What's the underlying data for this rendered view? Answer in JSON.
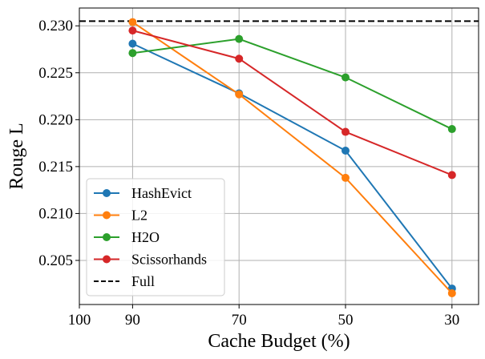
{
  "chart_data": {
    "type": "line",
    "title": "",
    "xlabel": "Cache Budget (%)",
    "ylabel": "Rouge L",
    "x": [
      90,
      70,
      50,
      30
    ],
    "xlim": [
      100,
      25
    ],
    "xticks": [
      100,
      90,
      70,
      50,
      30
    ],
    "ylim": [
      0.2003,
      0.2319
    ],
    "yticks": [
      0.205,
      0.21,
      0.215,
      0.22,
      0.225,
      0.23
    ],
    "ytick_labels": [
      "0.205",
      "0.210",
      "0.215",
      "0.220",
      "0.225",
      "0.230"
    ],
    "grid": true,
    "legend_position": "lower-left",
    "series": [
      {
        "name": "HashEvict",
        "color": "#1f77b4",
        "marker": "circle",
        "values": [
          0.2281,
          0.2228,
          0.2167,
          0.202
        ]
      },
      {
        "name": "L2",
        "color": "#ff7f0e",
        "marker": "circle",
        "values": [
          0.2304,
          0.2227,
          0.2138,
          0.2015
        ]
      },
      {
        "name": "H2O",
        "color": "#2ca02c",
        "marker": "circle",
        "values": [
          0.2271,
          0.2286,
          0.2245,
          0.219
        ]
      },
      {
        "name": "Scissorhands",
        "color": "#d62728",
        "marker": "circle",
        "values": [
          0.2295,
          0.2265,
          0.2187,
          0.2141
        ]
      }
    ],
    "reference_lines": [
      {
        "name": "Full",
        "value": 0.2305,
        "color": "#000000",
        "style": "dashed"
      }
    ]
  }
}
